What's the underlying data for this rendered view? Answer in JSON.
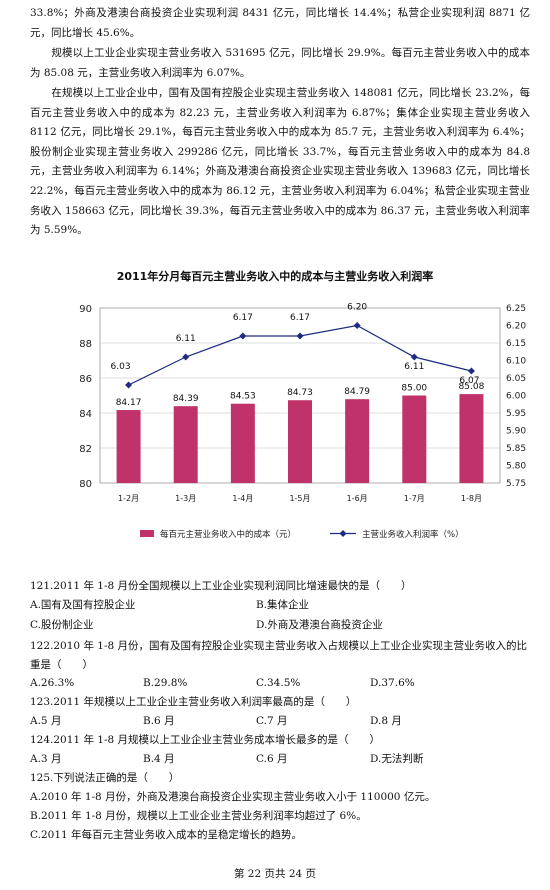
{
  "paragraphs": [
    "33.8%；外商及港澳台商投资企业实现利润 8431 亿元，同比增长 14.4%；私营企业实现利润 8871 亿元，同比增长 45.6%。",
    "　　规模以上工业企业实现主营业务收入 531695 亿元，同比增长 29.9%。每百元主营业务收入中的成本为 85.08 元，主营业务收入利润率为 6.07%。",
    "　　在规模以上工业企业中，国有及国有控股企业实现主营业务收入 148081 亿元，同比增长 23.2%，每百元主营业务收入中的成本为 82.23 元，主营业务收入利润率为 6.87%；集体企业实现主营业务收入 8112 亿元，同比增长 29.1%，每百元主营业务收入中的成本为 85.7 元，主营业务收入利润率为 6.4%；股份制企业实现主营业务收入 299286 亿元，同比增长 33.7%，每百元主营业务收入中的成本为 84.8 元，主营业务收入利润率为 6.14%；外商及港澳台商投资企业实现主营业务收入 139683 亿元，同比增长 22.2%，每百元主营业务收入中的成本为 86.12 元，主营业务收入利润率为 6.04%；私营企业实现主营业务收入 158663 亿元，同比增长 39.3%，每百元主营业务收入中的成本为 86.37 元，主营业务收入利润率为 5.59%。"
  ],
  "chart_data": {
    "type": "bar",
    "title": "2011年分月每百元主营业务收入中的成本与主营业务收入利润率",
    "categories": [
      "1-2月",
      "1-3月",
      "1-4月",
      "1-5月",
      "1-6月",
      "1-7月",
      "1-8月"
    ],
    "series": [
      {
        "name": "每百元主营业务收入中的成本（元）",
        "type": "bar",
        "axis": "left",
        "color": "#c0336a",
        "values": [
          84.17,
          84.39,
          84.53,
          84.73,
          84.79,
          85.0,
          85.08
        ]
      },
      {
        "name": "主营业务收入利润率（%）",
        "type": "line",
        "axis": "right",
        "color": "#1f2a80",
        "values": [
          6.03,
          6.11,
          6.17,
          6.17,
          6.2,
          6.11,
          6.07
        ]
      }
    ],
    "y_left": {
      "min": 80,
      "max": 90,
      "ticks": [
        "80",
        "82",
        "84",
        "86",
        "88",
        "90"
      ]
    },
    "y_right": {
      "min": 5.75,
      "max": 6.25,
      "ticks": [
        "5.75",
        "5.80",
        "5.85",
        "5.90",
        "5.95",
        "6.00",
        "6.05",
        "6.10",
        "6.15",
        "6.20",
        "6.25"
      ]
    },
    "bar_labels": [
      "84.17",
      "84.39",
      "84.53",
      "84.73",
      "84.79",
      "85.00",
      "85.08"
    ],
    "line_labels": [
      "6.03",
      "6.11",
      "6.17",
      "6.17",
      "6.20",
      "6.11",
      "6.07"
    ],
    "grid": true,
    "legend": "bottom"
  },
  "questions": [
    {
      "text": "121.2011 年 1-8 月份全国规模以上工业企业实现利润同比增速最快的是（　　）",
      "options": [
        "A.国有及国有控股企业",
        "B.集体企业",
        "C.股份制企业",
        "D.外商及港澳台商投资企业"
      ]
    },
    {
      "text": "122.2010 年 1-8 月份，国有及国有控股企业实现主营业务收入占规模以上工业企业实现主营业务收入的比重是（　　）",
      "options": [
        "A.26.3%",
        "B.29.8%",
        "C.34.5%",
        "D.37.6%"
      ]
    },
    {
      "text": "123.2011 年规模以上工业企业主营业务收入利润率最高的是（　　）",
      "options": [
        "A.5 月",
        "B.6 月",
        "C.7 月",
        "D.8 月"
      ]
    },
    {
      "text": "124.2011 年 1-8 月规模以上工业企业主营业务成本增长最多的是（　　）",
      "options": [
        "A.3 月",
        "B.4 月",
        "C.6 月",
        "D.无法判断"
      ]
    },
    {
      "text": "125.下列说法正确的是（　　）",
      "options": [
        "A.2010 年 1-8 月份，外商及港澳台商投资企业实现主营业务收入小于 110000 亿元。",
        "B.2011 年 1-8 月份，规模以上工业企业主营业务利润率均超过了 6%。",
        "C.2011 年每百元主营业务收入成本的呈稳定增长的趋势。"
      ]
    }
  ],
  "footer": "第 22 页共 24 页"
}
